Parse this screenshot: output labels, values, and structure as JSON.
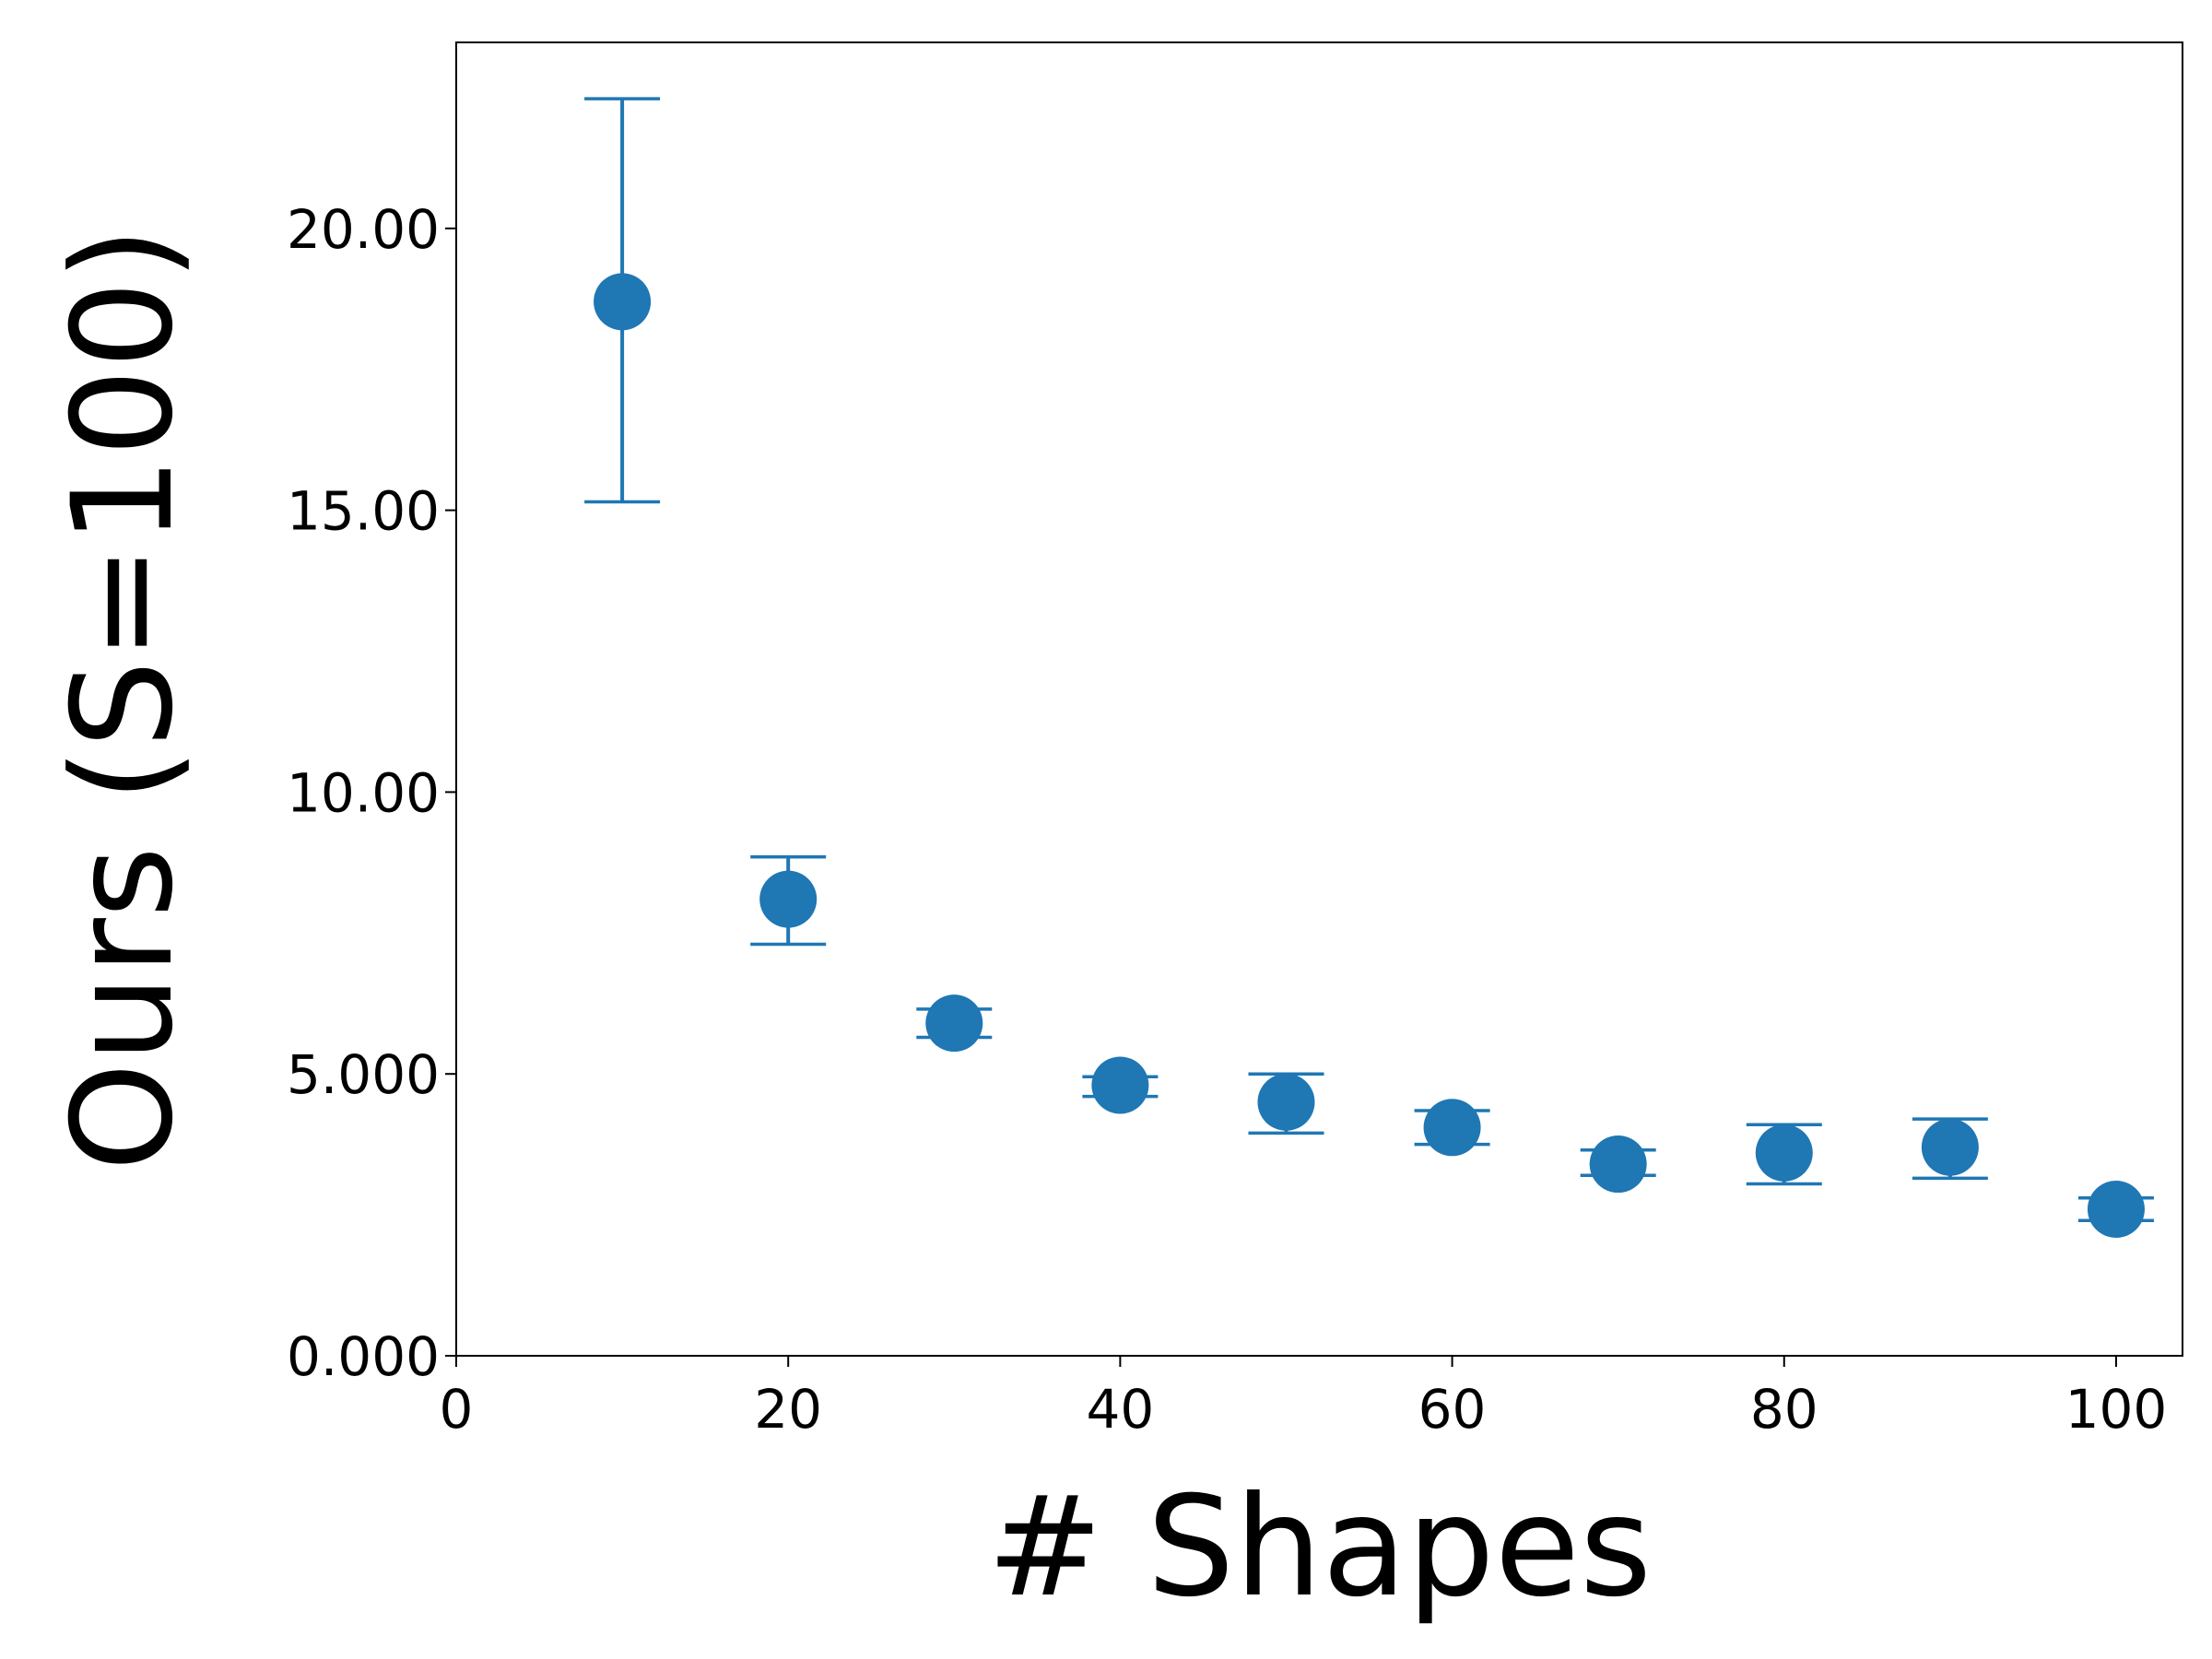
{
  "chart_data": {
    "type": "scatter",
    "title": "",
    "xlabel": "# Shapes",
    "ylabel": "Ours (S=100)",
    "xlim": [
      0,
      104
    ],
    "ylim": [
      0,
      23.3
    ],
    "grid": false,
    "x_ticks": [
      0,
      20,
      40,
      60,
      80,
      100
    ],
    "x_tick_labels": [
      "0",
      "20",
      "40",
      "60",
      "80",
      "100"
    ],
    "y_ticks": [
      0,
      5,
      10,
      15,
      20
    ],
    "y_tick_labels": [
      "0.000",
      "5.000",
      "10.00",
      "15.00",
      "20.00"
    ],
    "color": "#1f77b4",
    "series": [
      {
        "x": [
          10,
          20,
          30,
          40,
          50,
          60,
          70,
          80,
          90,
          100
        ],
        "y": [
          18.7,
          8.1,
          5.9,
          4.8,
          4.5,
          4.05,
          3.4,
          3.6,
          3.7,
          2.6
        ],
        "err_low": [
          15.15,
          7.3,
          5.65,
          4.6,
          3.95,
          3.75,
          3.2,
          3.05,
          3.15,
          2.4
        ],
        "err_high": [
          22.3,
          8.85,
          6.15,
          4.95,
          5.0,
          4.35,
          3.65,
          4.1,
          4.2,
          2.8
        ]
      }
    ]
  }
}
